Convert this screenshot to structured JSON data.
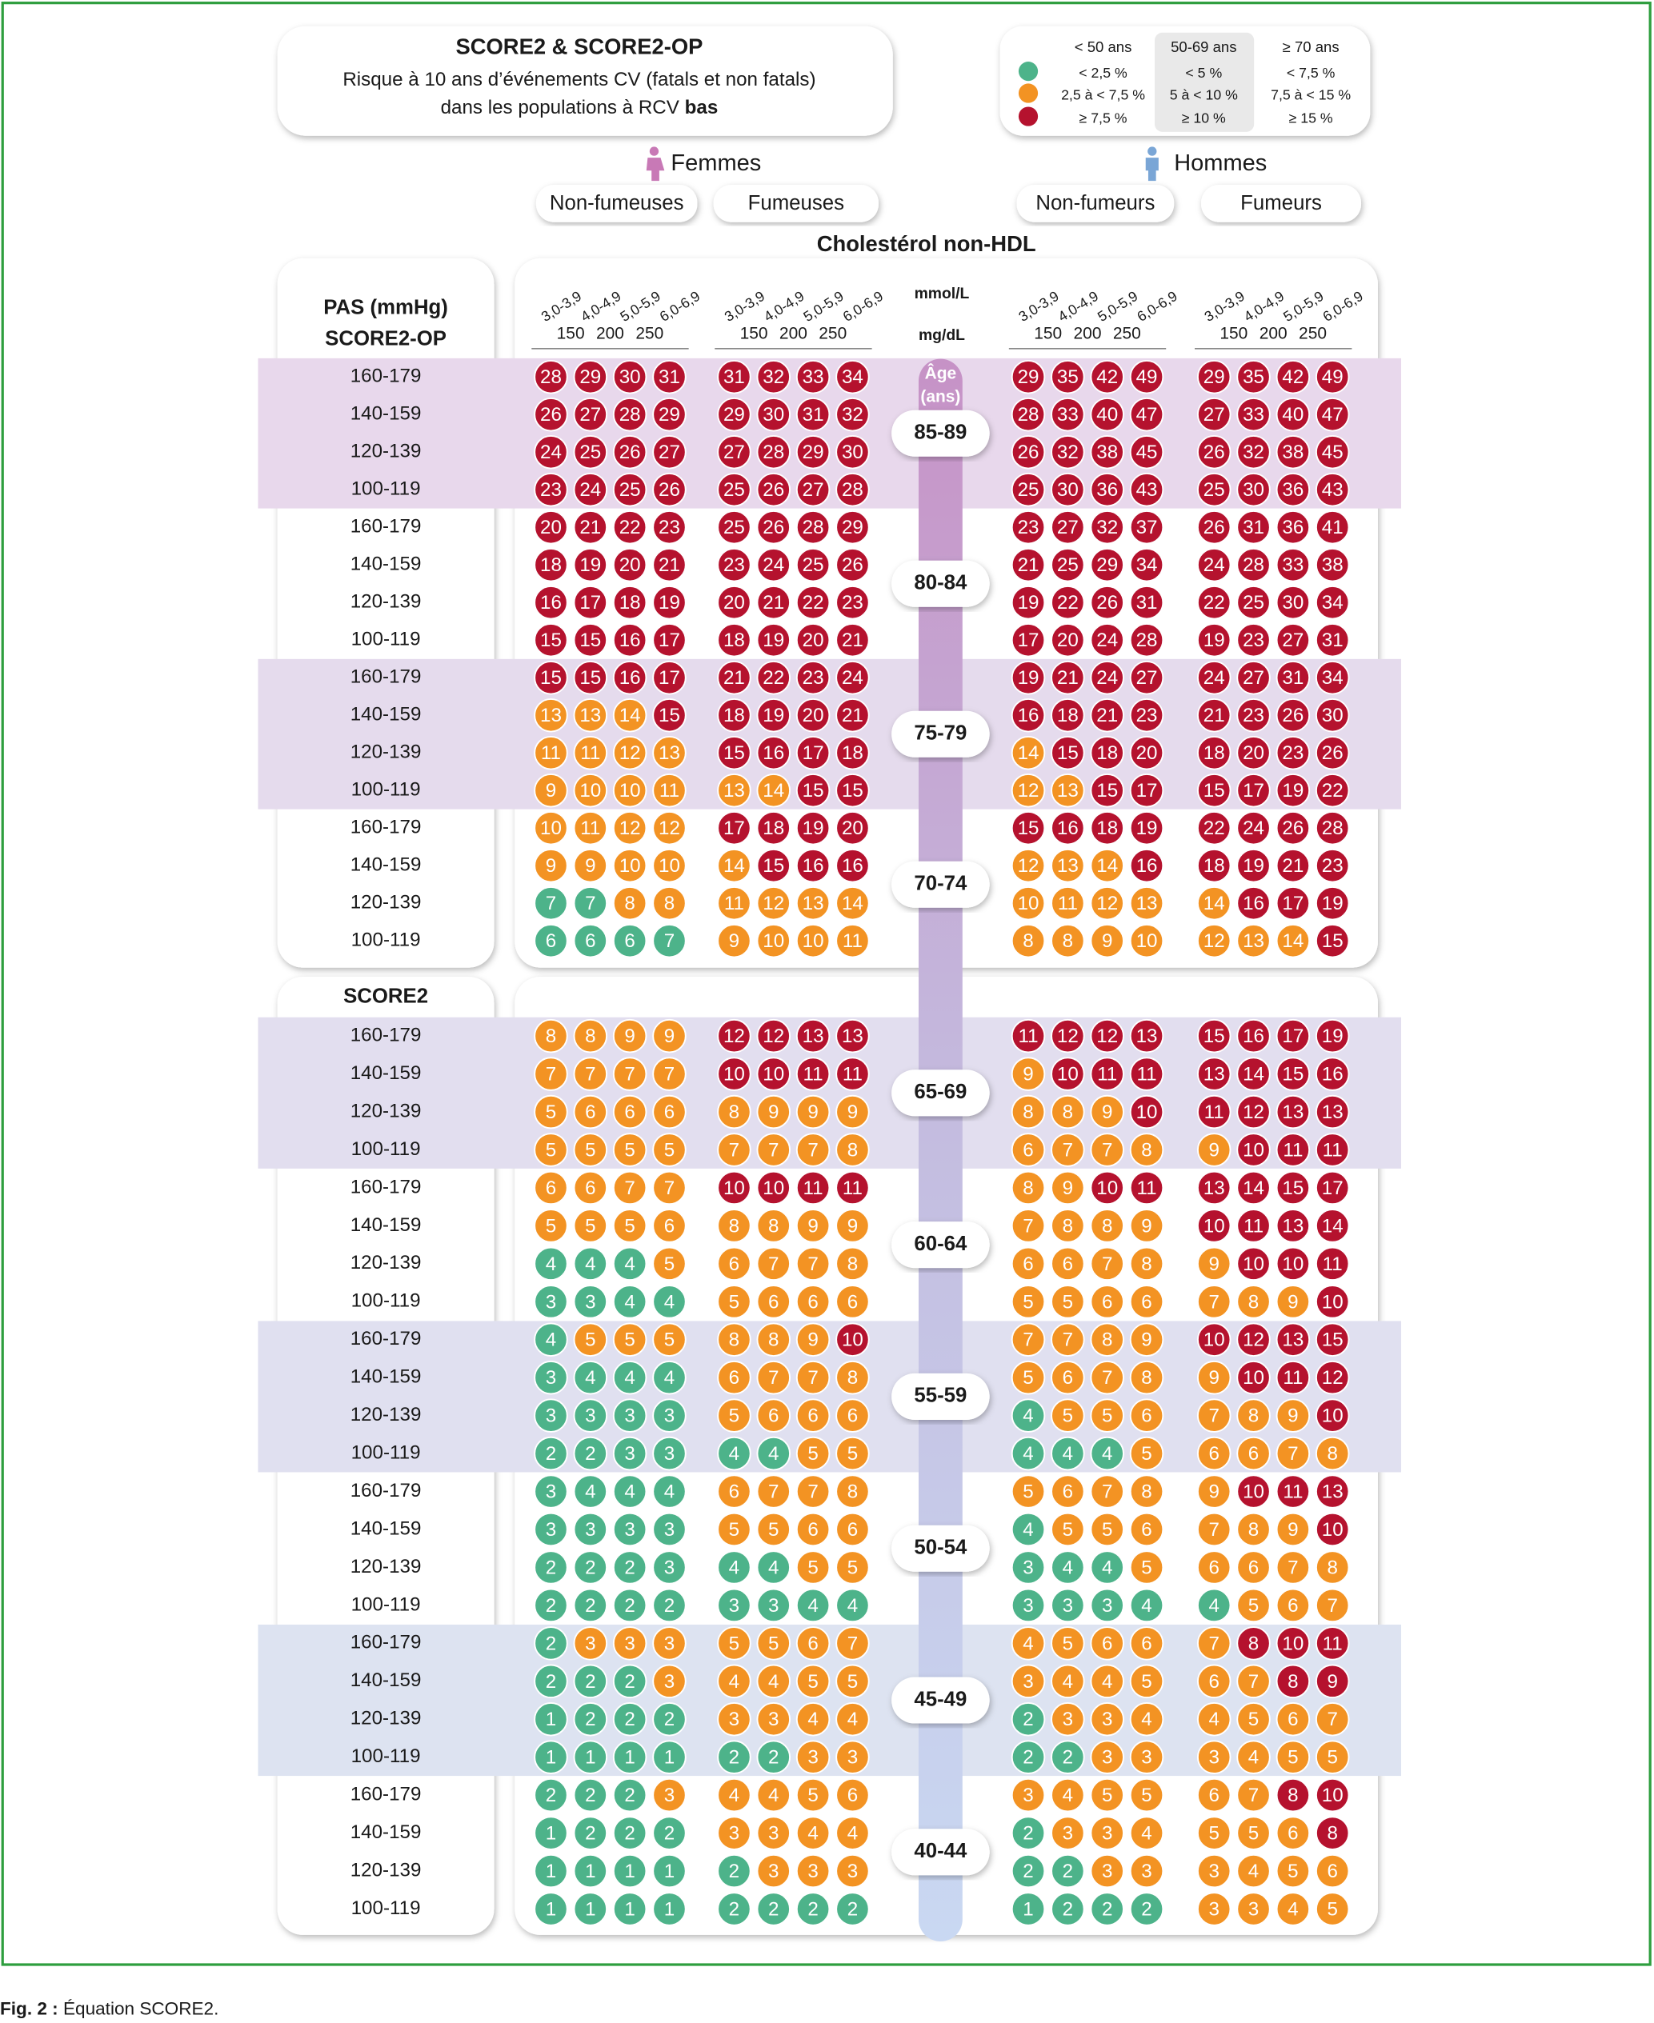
{
  "header": {
    "title": "SCORE2 & SCORE2-OP",
    "subtitle_lines": [
      "Risque à 10 ans d’événements CV (fatals et non fatals)",
      "dans les populations à RCV"
    ],
    "subtitle_bold": "bas"
  },
  "legend": {
    "colors": [
      "#4db38a",
      "#f39323",
      "#b5122e"
    ],
    "columns": [
      {
        "label": "< 50 ans",
        "items": [
          {
            "value": 2.5,
            "label": "< 2,5 %"
          },
          {
            "value": 7.5,
            "label": "2,5 à < 7,5 %"
          },
          {
            "value": 7.5,
            "label": "≥ 7,5 %"
          }
        ]
      },
      {
        "label": "50-69 ans",
        "items": [
          {
            "value": 5,
            "label": "< 5 %"
          },
          {
            "value": 10,
            "label": "5 à < 10 %"
          },
          {
            "value": 10,
            "label": "≥ 10 %"
          }
        ]
      },
      {
        "label": "≥ 70 ans",
        "items": [
          {
            "value": 7.5,
            "label": "< 7,5 %"
          },
          {
            "value": 15,
            "label": "7,5 à < 15 %"
          },
          {
            "value": 15,
            "label": "≥ 15 %"
          }
        ]
      }
    ]
  },
  "sexes": [
    {
      "label": "Femmes",
      "groups": [
        "Non-fumeuses",
        "Fumeuses"
      ]
    },
    {
      "label": "Hommes",
      "groups": [
        "Non-fumeurs",
        "Fumeurs"
      ]
    }
  ],
  "x_axis": {
    "title": "Cholestérol non-HDL",
    "mmol_unit": "mmol/L",
    "mmol": [
      "3,0-3,9",
      "4,0-4,9",
      "5,0-5,9",
      "6,0-6,9"
    ],
    "mgdl_unit": "mg/dL",
    "mgdl": [
      150,
      200,
      250
    ]
  },
  "age_title": [
    "Âge",
    "(ans)"
  ],
  "panels": [
    {
      "pas_label": "PAS (mmHg)",
      "title": "SCORE2-OP",
      "ages": [
        {
          "age": "85-89",
          "legend_column": 2,
          "rows": [
            {
              "sbp": "160-179",
              "values": [
                28,
                29,
                30,
                31,
                31,
                32,
                33,
                34,
                29,
                35,
                42,
                49,
                29,
                35,
                42,
                49
              ]
            },
            {
              "sbp": "140-159",
              "values": [
                26,
                27,
                28,
                29,
                29,
                30,
                31,
                32,
                28,
                33,
                40,
                47,
                27,
                33,
                40,
                47
              ]
            },
            {
              "sbp": "120-139",
              "values": [
                24,
                25,
                26,
                27,
                27,
                28,
                29,
                30,
                26,
                32,
                38,
                45,
                26,
                32,
                38,
                45
              ]
            },
            {
              "sbp": "100-119",
              "values": [
                23,
                24,
                25,
                26,
                25,
                26,
                27,
                28,
                25,
                30,
                36,
                43,
                25,
                30,
                36,
                43
              ]
            }
          ]
        },
        {
          "age": "80-84",
          "legend_column": 2,
          "rows": [
            {
              "sbp": "160-179",
              "values": [
                20,
                21,
                22,
                23,
                25,
                26,
                28,
                29,
                23,
                27,
                32,
                37,
                26,
                31,
                36,
                41
              ]
            },
            {
              "sbp": "140-159",
              "values": [
                18,
                19,
                20,
                21,
                23,
                24,
                25,
                26,
                21,
                25,
                29,
                34,
                24,
                28,
                33,
                38
              ]
            },
            {
              "sbp": "120-139",
              "values": [
                16,
                17,
                18,
                19,
                20,
                21,
                22,
                23,
                19,
                22,
                26,
                31,
                22,
                25,
                30,
                34
              ]
            },
            {
              "sbp": "100-119",
              "values": [
                15,
                15,
                16,
                17,
                18,
                19,
                20,
                21,
                17,
                20,
                24,
                28,
                19,
                23,
                27,
                31
              ]
            }
          ]
        },
        {
          "age": "75-79",
          "legend_column": 2,
          "rows": [
            {
              "sbp": "160-179",
              "values": [
                15,
                15,
                16,
                17,
                21,
                22,
                23,
                24,
                19,
                21,
                24,
                27,
                24,
                27,
                31,
                34
              ]
            },
            {
              "sbp": "140-159",
              "values": [
                13,
                13,
                14,
                15,
                18,
                19,
                20,
                21,
                16,
                18,
                21,
                23,
                21,
                23,
                26,
                30
              ]
            },
            {
              "sbp": "120-139",
              "values": [
                11,
                11,
                12,
                13,
                15,
                16,
                17,
                18,
                14,
                15,
                18,
                20,
                18,
                20,
                23,
                26
              ]
            },
            {
              "sbp": "100-119",
              "values": [
                9,
                10,
                10,
                11,
                13,
                14,
                15,
                15,
                12,
                13,
                15,
                17,
                15,
                17,
                19,
                22
              ]
            }
          ]
        },
        {
          "age": "70-74",
          "legend_column": 2,
          "rows": [
            {
              "sbp": "160-179",
              "values": [
                10,
                11,
                12,
                12,
                17,
                18,
                19,
                20,
                15,
                16,
                18,
                19,
                22,
                24,
                26,
                28
              ]
            },
            {
              "sbp": "140-159",
              "values": [
                9,
                9,
                10,
                10,
                14,
                15,
                16,
                16,
                12,
                13,
                14,
                16,
                18,
                19,
                21,
                23
              ]
            },
            {
              "sbp": "120-139",
              "values": [
                7,
                7,
                8,
                8,
                11,
                12,
                13,
                14,
                10,
                11,
                12,
                13,
                14,
                16,
                17,
                19
              ]
            },
            {
              "sbp": "100-119",
              "values": [
                6,
                6,
                6,
                7,
                9,
                10,
                10,
                11,
                8,
                8,
                9,
                10,
                12,
                13,
                14,
                15
              ]
            }
          ]
        }
      ]
    },
    {
      "title": "SCORE2",
      "ages": [
        {
          "age": "65-69",
          "legend_column": 1,
          "rows": [
            {
              "sbp": "160-179",
              "values": [
                8,
                8,
                9,
                9,
                12,
                12,
                13,
                13,
                11,
                12,
                12,
                13,
                15,
                16,
                17,
                19
              ]
            },
            {
              "sbp": "140-159",
              "values": [
                7,
                7,
                7,
                7,
                10,
                10,
                11,
                11,
                9,
                10,
                11,
                11,
                13,
                14,
                15,
                16
              ]
            },
            {
              "sbp": "120-139",
              "values": [
                5,
                6,
                6,
                6,
                8,
                9,
                9,
                9,
                8,
                8,
                9,
                10,
                11,
                12,
                13,
                13
              ]
            },
            {
              "sbp": "100-119",
              "values": [
                5,
                5,
                5,
                5,
                7,
                7,
                7,
                8,
                6,
                7,
                7,
                8,
                9,
                10,
                11,
                11
              ]
            }
          ]
        },
        {
          "age": "60-64",
          "legend_column": 1,
          "rows": [
            {
              "sbp": "160-179",
              "values": [
                6,
                6,
                7,
                7,
                10,
                10,
                11,
                11,
                8,
                9,
                10,
                11,
                13,
                14,
                15,
                17
              ]
            },
            {
              "sbp": "140-159",
              "values": [
                5,
                5,
                5,
                6,
                8,
                8,
                9,
                9,
                7,
                8,
                8,
                9,
                10,
                11,
                13,
                14
              ]
            },
            {
              "sbp": "120-139",
              "values": [
                4,
                4,
                4,
                5,
                6,
                7,
                7,
                8,
                6,
                6,
                7,
                8,
                9,
                10,
                10,
                11
              ]
            },
            {
              "sbp": "100-119",
              "values": [
                3,
                3,
                4,
                4,
                5,
                6,
                6,
                6,
                5,
                5,
                6,
                6,
                7,
                8,
                9,
                10
              ]
            }
          ]
        },
        {
          "age": "55-59",
          "legend_column": 1,
          "rows": [
            {
              "sbp": "160-179",
              "values": [
                4,
                5,
                5,
                5,
                8,
                8,
                9,
                10,
                7,
                7,
                8,
                9,
                10,
                12,
                13,
                15
              ]
            },
            {
              "sbp": "140-159",
              "values": [
                3,
                4,
                4,
                4,
                6,
                7,
                7,
                8,
                5,
                6,
                7,
                8,
                9,
                10,
                11,
                12
              ]
            },
            {
              "sbp": "120-139",
              "values": [
                3,
                3,
                3,
                3,
                5,
                6,
                6,
                6,
                4,
                5,
                5,
                6,
                7,
                8,
                9,
                10
              ]
            },
            {
              "sbp": "100-119",
              "values": [
                2,
                2,
                3,
                3,
                4,
                4,
                5,
                5,
                4,
                4,
                4,
                5,
                6,
                6,
                7,
                8
              ]
            }
          ]
        },
        {
          "age": "50-54",
          "legend_column": 1,
          "rows": [
            {
              "sbp": "160-179",
              "values": [
                3,
                4,
                4,
                4,
                6,
                7,
                7,
                8,
                5,
                6,
                7,
                8,
                9,
                10,
                11,
                13
              ]
            },
            {
              "sbp": "140-159",
              "values": [
                3,
                3,
                3,
                3,
                5,
                5,
                6,
                6,
                4,
                5,
                5,
                6,
                7,
                8,
                9,
                10
              ]
            },
            {
              "sbp": "120-139",
              "values": [
                2,
                2,
                2,
                3,
                4,
                4,
                5,
                5,
                3,
                4,
                4,
                5,
                6,
                6,
                7,
                8
              ]
            },
            {
              "sbp": "100-119",
              "values": [
                2,
                2,
                2,
                2,
                3,
                3,
                4,
                4,
                3,
                3,
                3,
                4,
                4,
                5,
                6,
                7
              ]
            }
          ]
        },
        {
          "age": "45-49",
          "legend_column": 0,
          "rows": [
            {
              "sbp": "160-179",
              "values": [
                2,
                3,
                3,
                3,
                5,
                5,
                6,
                7,
                4,
                5,
                6,
                6,
                7,
                8,
                10,
                11
              ]
            },
            {
              "sbp": "140-159",
              "values": [
                2,
                2,
                2,
                3,
                4,
                4,
                5,
                5,
                3,
                4,
                4,
                5,
                6,
                7,
                8,
                9
              ]
            },
            {
              "sbp": "120-139",
              "values": [
                1,
                2,
                2,
                2,
                3,
                3,
                4,
                4,
                2,
                3,
                3,
                4,
                4,
                5,
                6,
                7
              ]
            },
            {
              "sbp": "100-119",
              "values": [
                1,
                1,
                1,
                1,
                2,
                2,
                3,
                3,
                2,
                2,
                3,
                3,
                3,
                4,
                5,
                5
              ]
            }
          ]
        },
        {
          "age": "40-44",
          "legend_column": 0,
          "rows": [
            {
              "sbp": "160-179",
              "values": [
                2,
                2,
                2,
                3,
                4,
                4,
                5,
                6,
                3,
                4,
                5,
                5,
                6,
                7,
                8,
                10
              ]
            },
            {
              "sbp": "140-159",
              "values": [
                1,
                2,
                2,
                2,
                3,
                3,
                4,
                4,
                2,
                3,
                3,
                4,
                5,
                5,
                6,
                8
              ]
            },
            {
              "sbp": "120-139",
              "values": [
                1,
                1,
                1,
                1,
                2,
                3,
                3,
                3,
                2,
                2,
                3,
                3,
                3,
                4,
                5,
                6
              ]
            },
            {
              "sbp": "100-119",
              "values": [
                1,
                1,
                1,
                1,
                2,
                2,
                2,
                2,
                1,
                2,
                2,
                2,
                3,
                3,
                4,
                5
              ]
            }
          ]
        }
      ]
    }
  ],
  "caption": {
    "label": "Fig. 2 :",
    "text": "Équation SCORE2."
  }
}
